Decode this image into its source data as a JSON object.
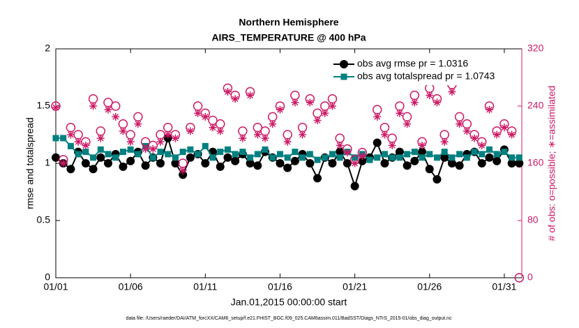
{
  "chart_data": {
    "type": "line",
    "title": "Northern Hemisphere",
    "subtitle": "AIRS_TEMPERATURE @ 400 hPa",
    "xlabel": "Jan.01,2015 00:00:00 start",
    "ylabel": "rmse and totalspread",
    "y2label": "# of obs: o=possible; ∗=assimilated",
    "footnote": "data file: /Users/raeder/DAI/ATM_forcXX/CAM6_setup/f.e21.FHIST_BGC.f09_025.CAM6assim.011/BadSST/Diags_NTrS_2015-01/obs_diag_output.nc",
    "xlim": [
      0,
      31.17
    ],
    "xticks": [
      {
        "value": 0,
        "label": "01/01"
      },
      {
        "value": 5,
        "label": "01/06"
      },
      {
        "value": 10,
        "label": "01/11"
      },
      {
        "value": 15,
        "label": "01/16"
      },
      {
        "value": 20,
        "label": "01/21"
      },
      {
        "value": 25,
        "label": "01/26"
      },
      {
        "value": 30,
        "label": "01/31"
      }
    ],
    "ylim": [
      0,
      2
    ],
    "yticks": [
      0,
      0.5,
      1,
      1.5,
      2
    ],
    "y2lim": [
      0,
      320
    ],
    "y2ticks": [
      0,
      80,
      160,
      240,
      320
    ],
    "y2color": "#cc1a66",
    "legend": "upper right",
    "x": [
      0,
      0.5,
      1,
      1.5,
      2,
      2.5,
      3,
      3.5,
      4,
      4.5,
      5,
      5.5,
      6,
      6.5,
      7,
      7.5,
      8,
      8.5,
      9,
      9.5,
      10,
      10.5,
      11,
      11.5,
      12,
      12.5,
      13,
      13.5,
      14,
      14.5,
      15,
      15.5,
      16,
      16.5,
      17,
      17.5,
      18,
      18.5,
      19,
      19.5,
      20,
      20.5,
      21,
      21.5,
      22,
      22.5,
      23,
      23.5,
      24,
      24.5,
      25,
      25.5,
      26,
      26.5,
      27,
      27.5,
      28,
      28.5,
      29,
      29.5,
      30,
      30.5,
      31
    ],
    "series": [
      {
        "name": "obs avg rmse pr = 1.0316",
        "color": "#000000",
        "marker": "circle",
        "line": true,
        "values": [
          1.05,
          1.0,
          0.95,
          1.1,
          1.0,
          0.95,
          1.05,
          1.0,
          1.08,
          0.97,
          1.02,
          1.1,
          0.98,
          1.05,
          1.0,
          1.22,
          1.0,
          0.9,
          1.05,
          1.08,
          1.0,
          1.1,
          0.97,
          1.05,
          1.02,
          1.08,
          1.0,
          0.98,
          1.1,
          1.05,
          1.0,
          0.96,
          1.02,
          1.08,
          1.0,
          0.87,
          1.05,
          1.0,
          1.1,
          1.0,
          0.8,
          1.02,
          1.05,
          1.18,
          1.0,
          1.05,
          1.1,
          0.98,
          1.02,
          1.1,
          0.95,
          0.86,
          1.05,
          1.0,
          0.98,
          1.08,
          1.1,
          1.0,
          1.05,
          1.02,
          1.12,
          1.0,
          1.0
        ]
      },
      {
        "name": "obs avg totalspread pr = 1.0743",
        "color": "#008080",
        "marker": "square",
        "line": true,
        "values": [
          1.22,
          1.22,
          1.15,
          1.08,
          1.1,
          1.05,
          1.12,
          1.08,
          1.05,
          1.1,
          1.12,
          1.08,
          1.15,
          1.05,
          1.1,
          1.08,
          1.05,
          1.1,
          1.12,
          1.08,
          1.15,
          1.05,
          1.1,
          1.12,
          1.08,
          1.1,
          1.05,
          1.08,
          1.12,
          1.05,
          1.08,
          1.05,
          1.1,
          1.05,
          1.08,
          1.03,
          1.05,
          1.08,
          1.05,
          1.1,
          1.05,
          1.08,
          1.03,
          1.05,
          1.08,
          1.05,
          1.05,
          1.08,
          1.1,
          1.05,
          1.08,
          1.05,
          1.1,
          1.05,
          1.08,
          1.05,
          1.1,
          1.08,
          1.12,
          1.08,
          1.1,
          1.05,
          1.05
        ]
      },
      {
        "color": "#cc1a66",
        "marker": "circle-open",
        "line": false,
        "axis": "y2",
        "values": [
          240,
          165,
          210,
          200,
          190,
          250,
          205,
          245,
          240,
          215,
          200,
          225,
          190,
          185,
          200,
          210,
          200,
          160,
          210,
          240,
          230,
          220,
          215,
          265,
          255,
          205,
          260,
          210,
          205,
          225,
          240,
          200,
          255,
          210,
          250,
          230,
          240,
          250,
          195,
          180,
          165,
          175,
          290,
          235,
          210,
          195,
          240,
          225,
          255,
          190,
          265,
          250,
          200,
          270,
          225,
          215,
          200,
          190,
          240,
          205,
          215,
          205,
          0
        ]
      },
      {
        "color": "#cc1a66",
        "marker": "asterisk",
        "line": false,
        "axis": "y2",
        "values": [
          238,
          160,
          200,
          190,
          185,
          240,
          195,
          235,
          225,
          205,
          190,
          215,
          180,
          180,
          190,
          200,
          195,
          150,
          205,
          230,
          225,
          210,
          205,
          260,
          250,
          195,
          255,
          200,
          195,
          215,
          235,
          190,
          245,
          200,
          245,
          220,
          230,
          240,
          185,
          175,
          160,
          170,
          285,
          225,
          200,
          185,
          230,
          215,
          245,
          185,
          255,
          245,
          190,
          260,
          215,
          205,
          195,
          185,
          235,
          200,
          210,
          200,
          null
        ]
      }
    ]
  }
}
